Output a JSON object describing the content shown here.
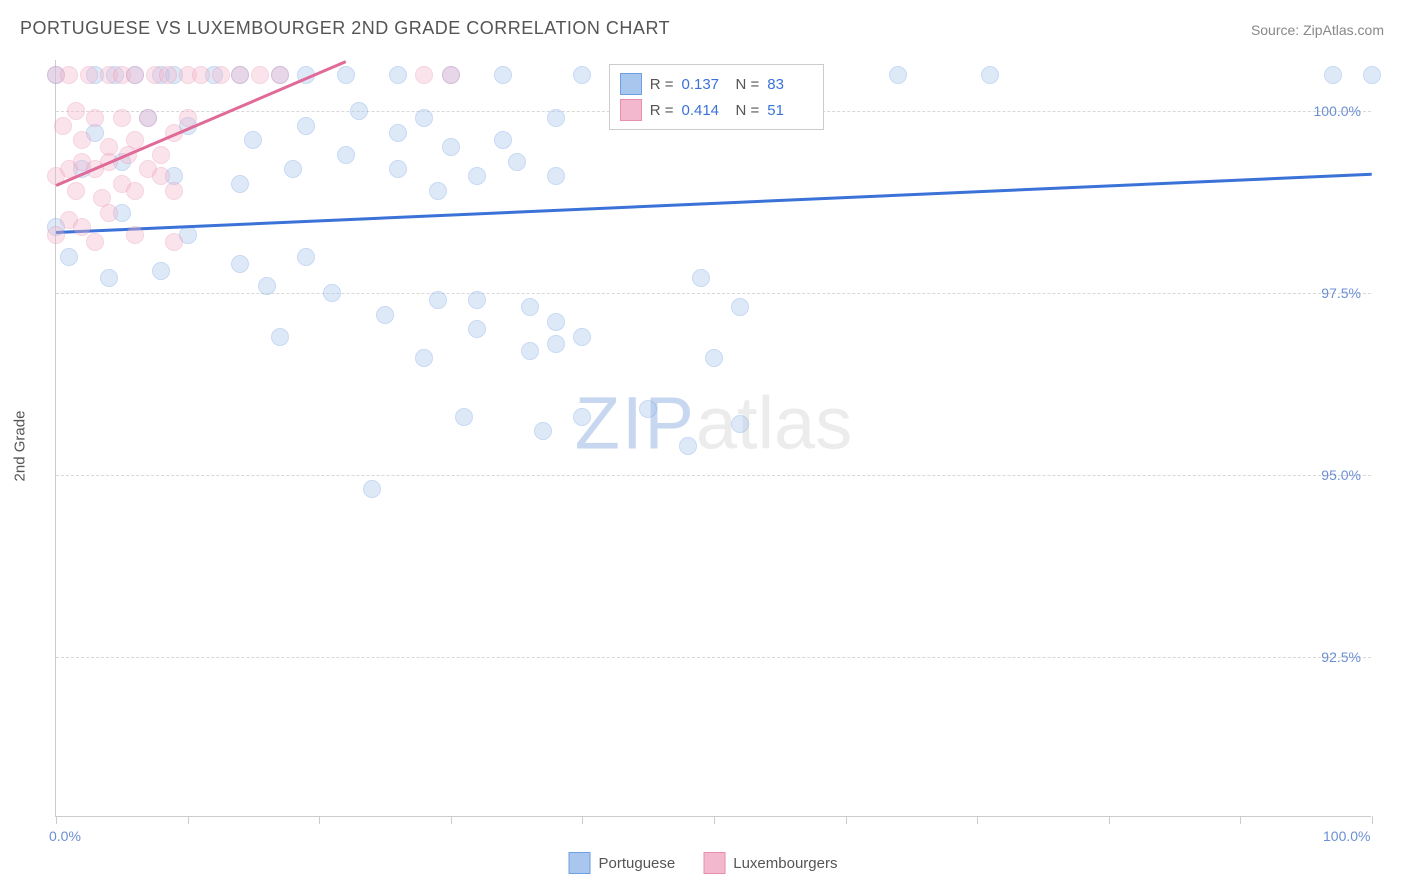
{
  "title": "PORTUGUESE VS LUXEMBOURGER 2ND GRADE CORRELATION CHART",
  "source": "Source: ZipAtlas.com",
  "y_axis_label": "2nd Grade",
  "watermark": {
    "part1": "ZIP",
    "part2": "atlas"
  },
  "chart": {
    "type": "scatter",
    "xlim": [
      0,
      100
    ],
    "ylim": [
      90.3,
      100.7
    ],
    "x_ticks": [
      0,
      10,
      20,
      30,
      40,
      50,
      60,
      70,
      80,
      90,
      100
    ],
    "x_tick_labels": {
      "0": "0.0%",
      "100": "100.0%"
    },
    "y_gridlines": [
      92.5,
      95.0,
      97.5,
      100.0
    ],
    "y_tick_labels": {
      "92.5": "92.5%",
      "95.0": "95.0%",
      "97.5": "97.5%",
      "100.0": "100.0%"
    },
    "marker_size": 18,
    "marker_opacity": 0.38,
    "grid_color": "#d8d8d8",
    "axis_color": "#cccccc",
    "background_color": "#ffffff",
    "tick_label_color": "#6b8fd4",
    "series": [
      {
        "name": "Portuguese",
        "fill_color": "#a9c6ef",
        "stroke_color": "#6f9fe0",
        "trend": {
          "x1": 0,
          "y1": 98.35,
          "x2": 100,
          "y2": 99.15,
          "color": "#3a72d8",
          "width": 2.5
        },
        "stats": {
          "r": "0.137",
          "n": "83"
        },
        "points": [
          [
            0,
            100.5
          ],
          [
            3,
            100.5
          ],
          [
            4.5,
            100.5
          ],
          [
            6,
            100.5
          ],
          [
            8,
            100.5
          ],
          [
            9,
            100.5
          ],
          [
            12,
            100.5
          ],
          [
            14,
            100.5
          ],
          [
            17,
            100.5
          ],
          [
            19,
            100.5
          ],
          [
            22,
            100.5
          ],
          [
            26,
            100.5
          ],
          [
            30,
            100.5
          ],
          [
            34,
            100.5
          ],
          [
            40,
            100.5
          ],
          [
            48,
            100.5
          ],
          [
            64,
            100.5
          ],
          [
            71,
            100.5
          ],
          [
            97,
            100.5
          ],
          [
            100,
            100.5
          ],
          [
            3,
            99.7
          ],
          [
            7,
            99.9
          ],
          [
            10,
            99.8
          ],
          [
            15,
            99.6
          ],
          [
            19,
            99.8
          ],
          [
            23,
            100.0
          ],
          [
            26,
            99.7
          ],
          [
            28,
            99.9
          ],
          [
            30,
            99.5
          ],
          [
            34,
            99.6
          ],
          [
            38,
            99.9
          ],
          [
            2,
            99.2
          ],
          [
            5,
            99.3
          ],
          [
            9,
            99.1
          ],
          [
            14,
            99.0
          ],
          [
            18,
            99.2
          ],
          [
            22,
            99.4
          ],
          [
            26,
            99.2
          ],
          [
            29,
            98.9
          ],
          [
            32,
            99.1
          ],
          [
            35,
            99.3
          ],
          [
            38,
            99.1
          ],
          [
            0,
            98.4
          ],
          [
            1,
            98.0
          ],
          [
            5,
            98.6
          ],
          [
            10,
            98.3
          ],
          [
            14,
            97.9
          ],
          [
            19,
            98.0
          ],
          [
            4,
            97.7
          ],
          [
            8,
            97.8
          ],
          [
            16,
            97.6
          ],
          [
            21,
            97.5
          ],
          [
            25,
            97.2
          ],
          [
            29,
            97.4
          ],
          [
            32,
            97.4
          ],
          [
            36,
            97.3
          ],
          [
            38,
            97.1
          ],
          [
            49,
            97.7
          ],
          [
            52,
            97.3
          ],
          [
            17,
            96.9
          ],
          [
            28,
            96.6
          ],
          [
            32,
            97.0
          ],
          [
            36,
            96.7
          ],
          [
            38,
            96.8
          ],
          [
            40,
            96.9
          ],
          [
            50,
            96.6
          ],
          [
            31,
            95.8
          ],
          [
            37,
            95.6
          ],
          [
            40,
            95.8
          ],
          [
            45,
            95.9
          ],
          [
            48,
            95.4
          ],
          [
            52,
            95.7
          ],
          [
            24,
            94.8
          ]
        ]
      },
      {
        "name": "Luxembourgers",
        "fill_color": "#f3b8cd",
        "stroke_color": "#e88fb0",
        "trend": {
          "x1": 0,
          "y1": 99.0,
          "x2": 22,
          "y2": 100.7,
          "color": "#e06a98",
          "width": 2.5
        },
        "stats": {
          "r": "0.414",
          "n": "51"
        },
        "points": [
          [
            0,
            100.5
          ],
          [
            1,
            100.5
          ],
          [
            2.5,
            100.5
          ],
          [
            4,
            100.5
          ],
          [
            5,
            100.5
          ],
          [
            6,
            100.5
          ],
          [
            7.5,
            100.5
          ],
          [
            8.5,
            100.5
          ],
          [
            10,
            100.5
          ],
          [
            11,
            100.5
          ],
          [
            12.5,
            100.5
          ],
          [
            14,
            100.5
          ],
          [
            15.5,
            100.5
          ],
          [
            17,
            100.5
          ],
          [
            0.5,
            99.8
          ],
          [
            1.5,
            100.0
          ],
          [
            2,
            99.6
          ],
          [
            3,
            99.9
          ],
          [
            4,
            99.5
          ],
          [
            5,
            99.9
          ],
          [
            6,
            99.6
          ],
          [
            7,
            99.9
          ],
          [
            8,
            99.4
          ],
          [
            9,
            99.7
          ],
          [
            10,
            99.9
          ],
          [
            0,
            99.1
          ],
          [
            1,
            99.2
          ],
          [
            1.5,
            98.9
          ],
          [
            2,
            99.3
          ],
          [
            3,
            99.2
          ],
          [
            3.5,
            98.8
          ],
          [
            4,
            99.3
          ],
          [
            5,
            99.0
          ],
          [
            5.5,
            99.4
          ],
          [
            6,
            98.9
          ],
          [
            7,
            99.2
          ],
          [
            8,
            99.1
          ],
          [
            9,
            98.9
          ],
          [
            0,
            98.3
          ],
          [
            1,
            98.5
          ],
          [
            2,
            98.4
          ],
          [
            3,
            98.2
          ],
          [
            4,
            98.6
          ],
          [
            6,
            98.3
          ],
          [
            9,
            98.2
          ],
          [
            28,
            100.5
          ],
          [
            30,
            100.5
          ]
        ]
      }
    ]
  },
  "stats_box": {
    "rows": [
      {
        "swatch_fill": "#a9c6ef",
        "swatch_stroke": "#6f9fe0",
        "r_label": "R =",
        "r_val": "0.137",
        "n_label": "N =",
        "n_val": "83"
      },
      {
        "swatch_fill": "#f3b8cd",
        "swatch_stroke": "#e88fb0",
        "r_label": "R =",
        "r_val": "0.414",
        "n_label": "N =",
        "n_val": "51"
      }
    ]
  },
  "bottom_legend": [
    {
      "label": "Portuguese",
      "fill": "#a9c6ef",
      "stroke": "#6f9fe0"
    },
    {
      "label": "Luxembourgers",
      "fill": "#f3b8cd",
      "stroke": "#e88fb0"
    }
  ]
}
